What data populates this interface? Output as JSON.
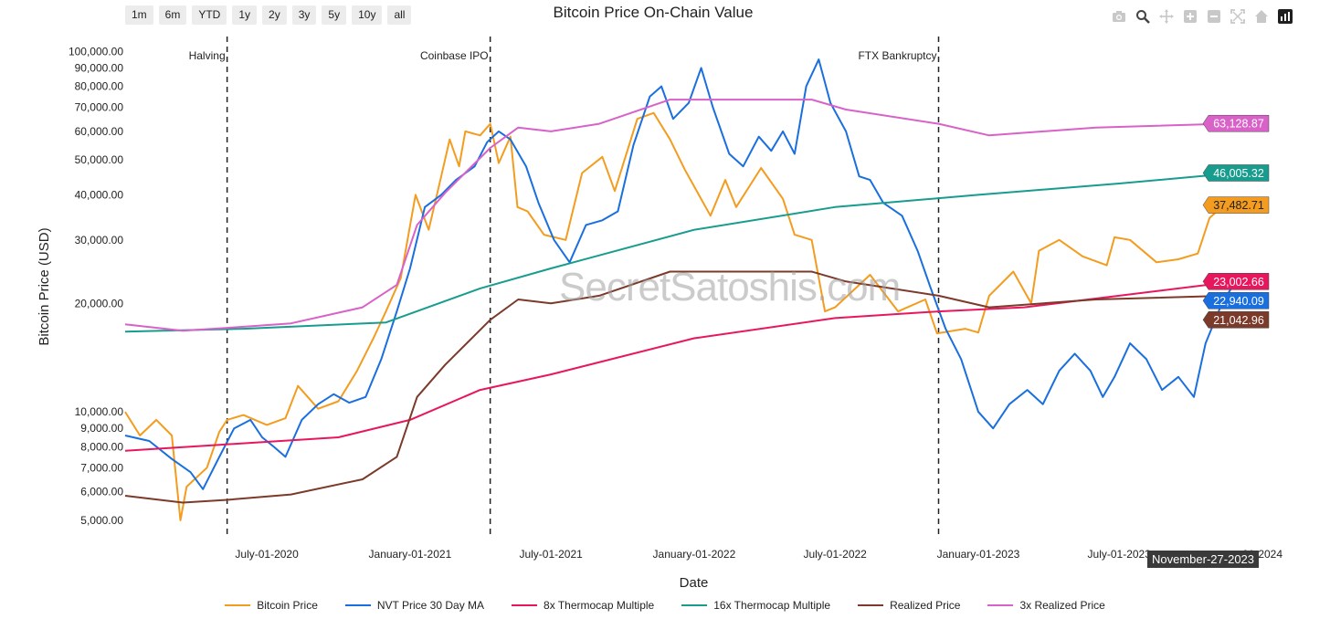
{
  "toolbar": {
    "range_buttons": [
      "1m",
      "6m",
      "YTD",
      "1y",
      "2y",
      "3y",
      "5y",
      "10y",
      "all"
    ],
    "icons": [
      "camera-icon",
      "zoom-icon",
      "pan-icon",
      "zoom-in-icon",
      "zoom-out-icon",
      "autoscale-icon",
      "home-icon",
      "plotly-logo-icon"
    ]
  },
  "watermark": "SecretSatoshis.com",
  "hover_date": "November-27-2023",
  "chart_data": {
    "type": "line",
    "title": "Bitcoin Price On-Chain Value",
    "xlabel": "Date",
    "ylabel": "Bitcoin Price (USD)",
    "yscale": "log",
    "xlim": [
      "2020-01-01",
      "2024-01-01"
    ],
    "ylim": [
      4500,
      110000
    ],
    "x_ticks": [
      {
        "date": "2020-07-01",
        "label": "July-01-2020"
      },
      {
        "date": "2021-01-01",
        "label": "January-01-2021"
      },
      {
        "date": "2021-07-01",
        "label": "July-01-2021"
      },
      {
        "date": "2022-01-01",
        "label": "January-01-2022"
      },
      {
        "date": "2022-07-01",
        "label": "July-01-2022"
      },
      {
        "date": "2023-01-01",
        "label": "January-01-2023"
      },
      {
        "date": "2023-07-01",
        "label": "July-01-2023"
      },
      {
        "date": "2024-01-01",
        "label": "01-2024"
      }
    ],
    "y_ticks": [
      {
        "value": 5000,
        "label": "5,000.00"
      },
      {
        "value": 6000,
        "label": "6,000.00"
      },
      {
        "value": 7000,
        "label": "7,000.00"
      },
      {
        "value": 8000,
        "label": "8,000.00"
      },
      {
        "value": 9000,
        "label": "9,000.00"
      },
      {
        "value": 10000,
        "label": "10,000.00"
      },
      {
        "value": 20000,
        "label": "20,000.00"
      },
      {
        "value": 30000,
        "label": "30,000.00"
      },
      {
        "value": 40000,
        "label": "40,000.00"
      },
      {
        "value": 50000,
        "label": "50,000.00"
      },
      {
        "value": 60000,
        "label": "60,000.00"
      },
      {
        "value": 70000,
        "label": "70,000.00"
      },
      {
        "value": 80000,
        "label": "80,000.00"
      },
      {
        "value": 90000,
        "label": "90,000.00"
      },
      {
        "value": 100000,
        "label": "100,000.00"
      }
    ],
    "events": [
      {
        "date": "2020-05-11",
        "label": "Halving"
      },
      {
        "date": "2021-04-14",
        "label": "Coinbase IPO"
      },
      {
        "date": "2022-11-11",
        "label": "FTX Bankruptcy"
      }
    ],
    "grid": false,
    "legend_position": "bottom",
    "series": [
      {
        "name": "Bitcoin Price",
        "color": "#f39c1f",
        "end_label": "37,482.71",
        "points": [
          [
            "2020-01-01",
            10000
          ],
          [
            "2020-01-20",
            8600
          ],
          [
            "2020-02-10",
            9500
          ],
          [
            "2020-03-01",
            8600
          ],
          [
            "2020-03-12",
            5000
          ],
          [
            "2020-03-20",
            6200
          ],
          [
            "2020-04-15",
            7000
          ],
          [
            "2020-05-01",
            8800
          ],
          [
            "2020-05-11",
            9500
          ],
          [
            "2020-06-01",
            9800
          ],
          [
            "2020-07-01",
            9200
          ],
          [
            "2020-07-25",
            9600
          ],
          [
            "2020-08-10",
            11800
          ],
          [
            "2020-09-05",
            10200
          ],
          [
            "2020-10-01",
            10700
          ],
          [
            "2020-10-25",
            13000
          ],
          [
            "2020-11-15",
            16000
          ],
          [
            "2020-12-01",
            19000
          ],
          [
            "2020-12-20",
            23500
          ],
          [
            "2021-01-08",
            40000
          ],
          [
            "2021-01-25",
            32000
          ],
          [
            "2021-02-10",
            45000
          ],
          [
            "2021-02-21",
            57000
          ],
          [
            "2021-03-05",
            48000
          ],
          [
            "2021-03-13",
            60000
          ],
          [
            "2021-04-01",
            58500
          ],
          [
            "2021-04-14",
            63000
          ],
          [
            "2021-04-25",
            49000
          ],
          [
            "2021-05-10",
            58000
          ],
          [
            "2021-05-19",
            37000
          ],
          [
            "2021-06-01",
            36000
          ],
          [
            "2021-06-22",
            31000
          ],
          [
            "2021-07-20",
            30000
          ],
          [
            "2021-08-10",
            46000
          ],
          [
            "2021-09-05",
            51000
          ],
          [
            "2021-09-21",
            41000
          ],
          [
            "2021-10-20",
            65000
          ],
          [
            "2021-11-10",
            67500
          ],
          [
            "2021-12-01",
            57000
          ],
          [
            "2021-12-20",
            47000
          ],
          [
            "2022-01-22",
            35000
          ],
          [
            "2022-02-10",
            44000
          ],
          [
            "2022-02-24",
            37000
          ],
          [
            "2022-03-28",
            47500
          ],
          [
            "2022-04-25",
            39000
          ],
          [
            "2022-05-10",
            31000
          ],
          [
            "2022-06-01",
            30000
          ],
          [
            "2022-06-18",
            19000
          ],
          [
            "2022-07-01",
            19500
          ],
          [
            "2022-08-15",
            24000
          ],
          [
            "2022-09-20",
            19000
          ],
          [
            "2022-10-25",
            20500
          ],
          [
            "2022-11-09",
            16500
          ],
          [
            "2022-12-15",
            17000
          ],
          [
            "2023-01-01",
            16600
          ],
          [
            "2023-01-15",
            21000
          ],
          [
            "2023-02-15",
            24500
          ],
          [
            "2023-03-10",
            20000
          ],
          [
            "2023-03-20",
            28000
          ],
          [
            "2023-04-15",
            30000
          ],
          [
            "2023-05-15",
            27000
          ],
          [
            "2023-06-15",
            25500
          ],
          [
            "2023-06-25",
            30500
          ],
          [
            "2023-07-15",
            30000
          ],
          [
            "2023-08-18",
            26000
          ],
          [
            "2023-09-15",
            26500
          ],
          [
            "2023-10-10",
            27500
          ],
          [
            "2023-10-25",
            34500
          ],
          [
            "2023-11-10",
            37000
          ],
          [
            "2023-11-27",
            37482.71
          ]
        ]
      },
      {
        "name": "NVT Price 30 Day MA",
        "color": "#1a6fdf",
        "end_label": "22,940.09",
        "points": [
          [
            "2020-01-01",
            8600
          ],
          [
            "2020-02-01",
            8300
          ],
          [
            "2020-03-01",
            7400
          ],
          [
            "2020-03-25",
            6800
          ],
          [
            "2020-04-10",
            6100
          ],
          [
            "2020-05-01",
            7500
          ],
          [
            "2020-05-20",
            9000
          ],
          [
            "2020-06-10",
            9500
          ],
          [
            "2020-06-25",
            8500
          ],
          [
            "2020-07-10",
            8000
          ],
          [
            "2020-07-25",
            7500
          ],
          [
            "2020-08-15",
            9500
          ],
          [
            "2020-09-05",
            10500
          ],
          [
            "2020-09-25",
            11200
          ],
          [
            "2020-10-15",
            10600
          ],
          [
            "2020-11-05",
            11000
          ],
          [
            "2020-11-25",
            14000
          ],
          [
            "2020-12-15",
            19000
          ],
          [
            "2021-01-01",
            25000
          ],
          [
            "2021-01-20",
            37000
          ],
          [
            "2021-02-10",
            40000
          ],
          [
            "2021-03-01",
            44000
          ],
          [
            "2021-03-25",
            48000
          ],
          [
            "2021-04-10",
            56000
          ],
          [
            "2021-04-25",
            60000
          ],
          [
            "2021-05-10",
            57000
          ],
          [
            "2021-05-30",
            48000
          ],
          [
            "2021-06-15",
            38000
          ],
          [
            "2021-07-05",
            30000
          ],
          [
            "2021-07-25",
            26000
          ],
          [
            "2021-08-15",
            33000
          ],
          [
            "2021-09-05",
            34000
          ],
          [
            "2021-09-25",
            36000
          ],
          [
            "2021-10-15",
            55000
          ],
          [
            "2021-11-05",
            75000
          ],
          [
            "2021-11-20",
            80000
          ],
          [
            "2021-12-05",
            65000
          ],
          [
            "2021-12-25",
            72000
          ],
          [
            "2022-01-10",
            90000
          ],
          [
            "2022-01-25",
            70000
          ],
          [
            "2022-02-15",
            52000
          ],
          [
            "2022-03-05",
            48000
          ],
          [
            "2022-03-25",
            58000
          ],
          [
            "2022-04-10",
            53000
          ],
          [
            "2022-04-25",
            60000
          ],
          [
            "2022-05-10",
            52000
          ],
          [
            "2022-05-25",
            80000
          ],
          [
            "2022-06-10",
            95000
          ],
          [
            "2022-06-25",
            72000
          ],
          [
            "2022-07-15",
            60000
          ],
          [
            "2022-08-01",
            45000
          ],
          [
            "2022-08-15",
            44000
          ],
          [
            "2022-09-01",
            38000
          ],
          [
            "2022-09-25",
            35000
          ],
          [
            "2022-10-15",
            28000
          ],
          [
            "2022-11-01",
            22000
          ],
          [
            "2022-11-20",
            17000
          ],
          [
            "2022-12-10",
            14000
          ],
          [
            "2023-01-01",
            10000
          ],
          [
            "2023-01-20",
            9000
          ],
          [
            "2023-02-10",
            10500
          ],
          [
            "2023-03-05",
            11500
          ],
          [
            "2023-03-25",
            10500
          ],
          [
            "2023-04-15",
            13000
          ],
          [
            "2023-05-05",
            14500
          ],
          [
            "2023-05-25",
            13000
          ],
          [
            "2023-06-10",
            11000
          ],
          [
            "2023-06-25",
            12500
          ],
          [
            "2023-07-15",
            15500
          ],
          [
            "2023-08-05",
            14000
          ],
          [
            "2023-08-25",
            11500
          ],
          [
            "2023-09-15",
            12500
          ],
          [
            "2023-10-05",
            11000
          ],
          [
            "2023-10-20",
            15500
          ],
          [
            "2023-11-10",
            20000
          ],
          [
            "2023-11-27",
            22940.09
          ]
        ]
      },
      {
        "name": "8x Thermocap Multiple",
        "color": "#e8175d",
        "end_label": "23,002.66",
        "points": [
          [
            "2020-01-01",
            7800
          ],
          [
            "2020-05-01",
            8100
          ],
          [
            "2020-10-01",
            8500
          ],
          [
            "2021-01-01",
            9500
          ],
          [
            "2021-04-01",
            11500
          ],
          [
            "2021-07-01",
            12700
          ],
          [
            "2022-01-01",
            16000
          ],
          [
            "2022-07-01",
            18200
          ],
          [
            "2022-11-11",
            19000
          ],
          [
            "2023-03-01",
            19500
          ],
          [
            "2023-07-01",
            21000
          ],
          [
            "2023-11-27",
            23002.66
          ]
        ]
      },
      {
        "name": "16x Thermocap Multiple",
        "color": "#179c8e",
        "end_label": "46,005.32",
        "points": [
          [
            "2020-01-01",
            16700
          ],
          [
            "2020-06-01",
            17000
          ],
          [
            "2020-12-01",
            17700
          ],
          [
            "2021-04-01",
            22000
          ],
          [
            "2021-07-01",
            25000
          ],
          [
            "2022-01-01",
            32000
          ],
          [
            "2022-07-01",
            37000
          ],
          [
            "2023-01-01",
            40000
          ],
          [
            "2023-07-01",
            43000
          ],
          [
            "2023-11-27",
            46005.32
          ]
        ]
      },
      {
        "name": "Realized Price",
        "color": "#7b3a2a",
        "end_label": "21,042.96",
        "points": [
          [
            "2020-01-01",
            5850
          ],
          [
            "2020-03-15",
            5600
          ],
          [
            "2020-05-11",
            5700
          ],
          [
            "2020-08-01",
            5900
          ],
          [
            "2020-11-01",
            6500
          ],
          [
            "2020-12-15",
            7500
          ],
          [
            "2021-01-10",
            11000
          ],
          [
            "2021-02-15",
            13500
          ],
          [
            "2021-04-14",
            18000
          ],
          [
            "2021-05-20",
            20500
          ],
          [
            "2021-07-01",
            20000
          ],
          [
            "2021-09-01",
            21000
          ],
          [
            "2021-12-01",
            24500
          ],
          [
            "2022-03-01",
            24500
          ],
          [
            "2022-06-01",
            24500
          ],
          [
            "2022-07-15",
            23000
          ],
          [
            "2022-11-11",
            21000
          ],
          [
            "2023-01-15",
            19500
          ],
          [
            "2023-06-01",
            20500
          ],
          [
            "2023-11-27",
            21042.96
          ]
        ]
      },
      {
        "name": "3x Realized Price",
        "color": "#d862c8",
        "end_label": "63,128.87",
        "points": [
          [
            "2020-01-01",
            17500
          ],
          [
            "2020-03-15",
            16800
          ],
          [
            "2020-05-11",
            17100
          ],
          [
            "2020-08-01",
            17600
          ],
          [
            "2020-11-01",
            19500
          ],
          [
            "2020-12-15",
            22500
          ],
          [
            "2021-01-10",
            33000
          ],
          [
            "2021-02-15",
            40500
          ],
          [
            "2021-04-14",
            54000
          ],
          [
            "2021-05-20",
            61500
          ],
          [
            "2021-07-01",
            60000
          ],
          [
            "2021-09-01",
            63000
          ],
          [
            "2021-12-01",
            73500
          ],
          [
            "2022-03-01",
            73500
          ],
          [
            "2022-06-01",
            73500
          ],
          [
            "2022-07-15",
            69000
          ],
          [
            "2022-11-11",
            63000
          ],
          [
            "2023-01-15",
            58500
          ],
          [
            "2023-06-01",
            61500
          ],
          [
            "2023-11-27",
            63128.87
          ]
        ]
      }
    ]
  }
}
